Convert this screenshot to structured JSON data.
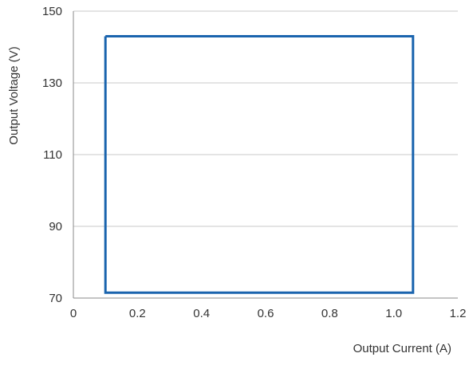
{
  "chart_data": {
    "type": "line",
    "title": "",
    "xlabel": "Output Current (A)",
    "ylabel": "Output Voltage (V)",
    "xlim": [
      0,
      1.2
    ],
    "ylim": [
      70,
      150
    ],
    "x_ticks": [
      "0",
      "0.2",
      "0.4",
      "0.6",
      "0.8",
      "1.0",
      "1.2"
    ],
    "y_ticks": [
      "70",
      "90",
      "110",
      "130",
      "150"
    ],
    "grid": "horizontal",
    "series": [
      {
        "x": [
          0.1,
          1.06,
          1.06,
          0.1,
          0.1
        ],
        "y": [
          143,
          143,
          71.5,
          71.5,
          143
        ]
      }
    ],
    "colors": {
      "series": "#1a64ae",
      "grid": "#c8c8c8",
      "axis": "#8a8a8a",
      "text": "#333333"
    }
  }
}
